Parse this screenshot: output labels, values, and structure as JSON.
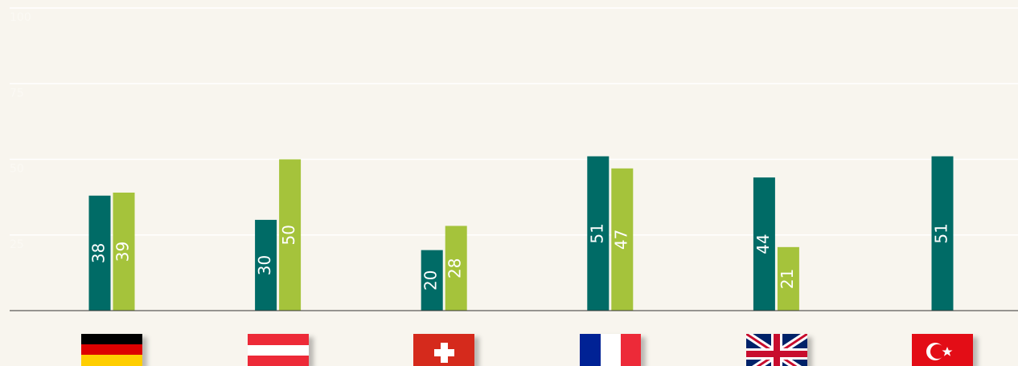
{
  "chart_data": {
    "type": "bar",
    "categories": [
      null,
      null,
      null,
      null,
      null,
      null
    ],
    "series": [
      {
        "color": "#006b66",
        "values": [
          38,
          30,
          20,
          51,
          44,
          51
        ]
      },
      {
        "color": "#a5c33b",
        "values": [
          39,
          50,
          28,
          47,
          21,
          null
        ]
      }
    ],
    "ylim": [
      0,
      100
    ],
    "yticks": [
      25,
      50,
      75,
      100
    ],
    "grid": true
  }
}
